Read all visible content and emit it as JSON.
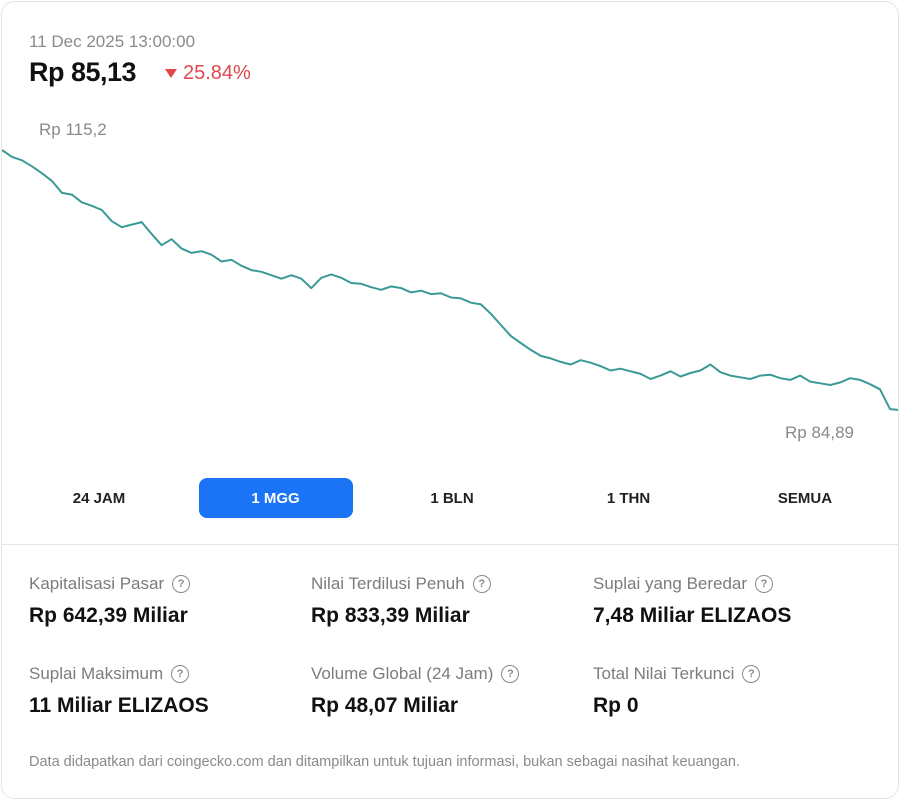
{
  "header": {
    "timestamp": "11 Dec 2025 13:00:00",
    "price": "Rp 85,13",
    "change": "25.84%",
    "change_direction": "down",
    "change_color": "#e0484e"
  },
  "chart_data": {
    "type": "line",
    "max_label": "Rp 115,2",
    "min_label": "Rp 84,89",
    "line_color": "#3a9a96",
    "ylim": [
      84.89,
      115.2
    ],
    "values": [
      115.2,
      114.4,
      114.0,
      113.3,
      112.5,
      111.6,
      110.2,
      110.0,
      109.1,
      108.7,
      108.2,
      106.9,
      106.2,
      106.5,
      106.8,
      105.4,
      104.1,
      104.8,
      103.7,
      103.2,
      103.4,
      103.0,
      102.2,
      102.4,
      101.7,
      101.2,
      101.0,
      100.6,
      100.2,
      100.6,
      100.2,
      99.1,
      100.3,
      100.7,
      100.3,
      99.7,
      99.6,
      99.2,
      98.9,
      99.3,
      99.1,
      98.6,
      98.8,
      98.4,
      98.5,
      98.0,
      97.9,
      97.4,
      97.2,
      96.1,
      94.8,
      93.5,
      92.7,
      91.9,
      91.2,
      90.9,
      90.5,
      90.2,
      90.7,
      90.4,
      90.0,
      89.5,
      89.7,
      89.4,
      89.1,
      88.5,
      88.9,
      89.4,
      88.8,
      89.2,
      89.5,
      90.2,
      89.3,
      88.9,
      88.7,
      88.5,
      88.9,
      89.0,
      88.6,
      88.4,
      88.9,
      88.2,
      88.0,
      87.8,
      88.1,
      88.6,
      88.4,
      87.9,
      87.3,
      85.0,
      84.89
    ]
  },
  "tabs": [
    {
      "label": "24 JAM",
      "active": false
    },
    {
      "label": "1 MGG",
      "active": true
    },
    {
      "label": "1 BLN",
      "active": false
    },
    {
      "label": "1 THN",
      "active": false
    },
    {
      "label": "SEMUA",
      "active": false
    }
  ],
  "stats": [
    {
      "label": "Kapitalisasi Pasar",
      "value": "Rp 642,39 Miliar"
    },
    {
      "label": "Nilai Terdilusi Penuh",
      "value": "Rp 833,39 Miliar"
    },
    {
      "label": "Suplai yang Beredar",
      "value": "7,48 Miliar ELIZAOS"
    },
    {
      "label": "Suplai Maksimum",
      "value": "11 Miliar ELIZAOS"
    },
    {
      "label": "Volume Global (24 Jam)",
      "value": "Rp 48,07 Miliar"
    },
    {
      "label": "Total Nilai Terkunci",
      "value": "Rp 0"
    }
  ],
  "help_icon_glyph": "?",
  "footer": "Data didapatkan dari coingecko.com dan ditampilkan untuk tujuan informasi, bukan sebagai nasihat keuangan."
}
